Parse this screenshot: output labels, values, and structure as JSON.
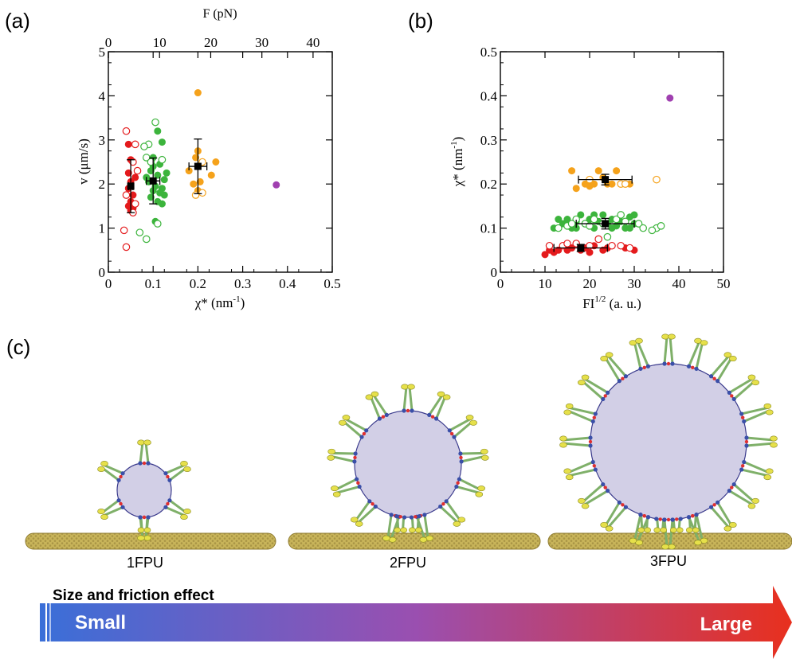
{
  "panel_labels": {
    "a": "(a)",
    "b": "(b)",
    "c": "(c)"
  },
  "colors": {
    "red": "#e41a1c",
    "green": "#3cb43c",
    "orange": "#f5a21b",
    "purple": "#a040b0",
    "black": "#000000",
    "vesicle_fill": "#d2cfe6",
    "vesicle_edge": "#3a3a8c",
    "microtubule": "#c8b45a",
    "motor_stalk": "#7fb069",
    "motor_head": "#e6e04a",
    "bar_start": "#3a6fd8",
    "bar_mid": "#9a4fb0",
    "bar_end": "#e8301e"
  },
  "chart_data": [
    {
      "type": "scatter",
      "panel": "(a)",
      "xlabel": "χ* (nm",
      "xlabel_sup": "-1",
      "xlabel_end": ")",
      "ylabel": "v (μm/s)",
      "top_xlabel": "F (pN)",
      "xlim": [
        0,
        0.5
      ],
      "ylim": [
        0,
        5
      ],
      "top_xlim": [
        0,
        43.75
      ],
      "xticks": [
        "0",
        "0.1",
        "0.2",
        "0.3",
        "0.4",
        "0.5"
      ],
      "yticks": [
        "0",
        "1",
        "2",
        "3",
        "4",
        "5"
      ],
      "top_xticks": [
        "0",
        "10",
        "20",
        "30",
        "40"
      ],
      "series": [
        {
          "color_key": "red",
          "filled": true,
          "points": [
            [
              0.045,
              2.9
            ],
            [
              0.05,
              2.55
            ],
            [
              0.045,
              2.25
            ],
            [
              0.05,
              2.05
            ],
            [
              0.045,
              1.9
            ],
            [
              0.055,
              1.75
            ],
            [
              0.05,
              1.6
            ],
            [
              0.045,
              1.5
            ],
            [
              0.055,
              1.45
            ],
            [
              0.05,
              1.4
            ],
            [
              0.06,
              2.15
            ]
          ]
        },
        {
          "color_key": "red",
          "filled": false,
          "points": [
            [
              0.04,
              3.2
            ],
            [
              0.06,
              2.9
            ],
            [
              0.055,
              2.5
            ],
            [
              0.065,
              2.3
            ],
            [
              0.04,
              1.75
            ],
            [
              0.06,
              1.55
            ],
            [
              0.035,
              0.95
            ],
            [
              0.04,
              0.57
            ],
            [
              0.055,
              1.35
            ]
          ]
        },
        {
          "color_key": "green",
          "filled": true,
          "points": [
            [
              0.11,
              3.2
            ],
            [
              0.12,
              2.95
            ],
            [
              0.1,
              2.6
            ],
            [
              0.115,
              2.45
            ],
            [
              0.095,
              2.3
            ],
            [
              0.11,
              2.2
            ],
            [
              0.125,
              2.1
            ],
            [
              0.09,
              2.05
            ],
            [
              0.105,
              1.95
            ],
            [
              0.12,
              1.9
            ],
            [
              0.1,
              1.85
            ],
            [
              0.115,
              1.8
            ],
            [
              0.125,
              1.75
            ],
            [
              0.095,
              1.7
            ],
            [
              0.11,
              1.6
            ],
            [
              0.12,
              1.55
            ],
            [
              0.1,
              2.4
            ],
            [
              0.13,
              2.25
            ],
            [
              0.085,
              2.15
            ],
            [
              0.105,
              1.15
            ]
          ]
        },
        {
          "color_key": "green",
          "filled": false,
          "points": [
            [
              0.105,
              3.4
            ],
            [
              0.09,
              2.9
            ],
            [
              0.08,
              2.85
            ],
            [
              0.085,
              2.6
            ],
            [
              0.095,
              2.5
            ],
            [
              0.07,
              0.9
            ],
            [
              0.085,
              0.75
            ],
            [
              0.11,
              1.1
            ],
            [
              0.12,
              2.55
            ]
          ]
        },
        {
          "color_key": "orange",
          "filled": true,
          "points": [
            [
              0.2,
              4.07
            ],
            [
              0.2,
              2.75
            ],
            [
              0.195,
              2.6
            ],
            [
              0.18,
              2.3
            ],
            [
              0.24,
              2.5
            ],
            [
              0.23,
              2.2
            ],
            [
              0.205,
              2.05
            ],
            [
              0.19,
              2.0
            ],
            [
              0.2,
              1.85
            ]
          ]
        },
        {
          "color_key": "orange",
          "filled": false,
          "points": [
            [
              0.21,
              2.5
            ],
            [
              0.195,
              1.75
            ],
            [
              0.21,
              1.8
            ]
          ]
        },
        {
          "color_key": "purple",
          "filled": true,
          "points": [
            [
              0.375,
              1.98
            ]
          ]
        }
      ],
      "means": [
        {
          "x": 0.05,
          "y": 1.95,
          "xerr": 0.005,
          "yerr_low": 0.6,
          "yerr_high": 0.6
        },
        {
          "x": 0.1,
          "y": 2.07,
          "xerr": 0.015,
          "yerr_low": 0.52,
          "yerr_high": 0.52
        },
        {
          "x": 0.2,
          "y": 2.4,
          "xerr": 0.02,
          "yerr_low": 0.62,
          "yerr_high": 0.62
        }
      ]
    },
    {
      "type": "scatter",
      "panel": "(b)",
      "xlabel": "FI",
      "xlabel_sup": "1/2",
      "xlabel_end": " (a. u.)",
      "ylabel": "χ* (nm",
      "ylabel_sup": "-1",
      "ylabel_end": ")",
      "xlim": [
        0,
        50
      ],
      "ylim": [
        0,
        0.5
      ],
      "xticks": [
        "0",
        "10",
        "20",
        "30",
        "40",
        "50"
      ],
      "yticks": [
        "0",
        "0.1",
        "0.2",
        "0.3",
        "0.4",
        "0.5"
      ],
      "series": [
        {
          "color_key": "red",
          "filled": true,
          "points": [
            [
              10,
              0.04
            ],
            [
              12,
              0.045
            ],
            [
              13,
              0.05
            ],
            [
              15,
              0.05
            ],
            [
              16,
              0.055
            ],
            [
              18,
              0.05
            ],
            [
              19,
              0.055
            ],
            [
              21,
              0.06
            ],
            [
              23,
              0.05
            ],
            [
              24,
              0.055
            ],
            [
              28,
              0.055
            ],
            [
              30,
              0.05
            ],
            [
              11,
              0.05
            ],
            [
              20,
              0.045
            ]
          ]
        },
        {
          "color_key": "red",
          "filled": false,
          "points": [
            [
              11,
              0.06
            ],
            [
              14,
              0.06
            ],
            [
              17,
              0.065
            ],
            [
              20,
              0.06
            ],
            [
              22,
              0.075
            ],
            [
              25,
              0.06
            ],
            [
              27,
              0.06
            ],
            [
              29,
              0.055
            ],
            [
              15,
              0.065
            ]
          ]
        },
        {
          "color_key": "green",
          "filled": true,
          "points": [
            [
              12,
              0.1
            ],
            [
              14,
              0.11
            ],
            [
              15,
              0.12
            ],
            [
              16,
              0.1
            ],
            [
              17,
              0.115
            ],
            [
              18,
              0.13
            ],
            [
              19,
              0.11
            ],
            [
              20,
              0.12
            ],
            [
              21,
              0.1
            ],
            [
              22,
              0.115
            ],
            [
              23,
              0.13
            ],
            [
              24,
              0.11
            ],
            [
              25,
              0.12
            ],
            [
              26,
              0.105
            ],
            [
              27,
              0.115
            ],
            [
              28,
              0.1
            ],
            [
              29,
              0.125
            ],
            [
              30,
              0.11
            ],
            [
              13,
              0.12
            ],
            [
              17,
              0.1
            ],
            [
              21,
              0.13
            ],
            [
              25,
              0.1
            ],
            [
              29,
              0.1
            ],
            [
              30,
              0.13
            ]
          ]
        },
        {
          "color_key": "green",
          "filled": false,
          "points": [
            [
              13,
              0.1
            ],
            [
              15,
              0.105
            ],
            [
              17,
              0.12
            ],
            [
              19,
              0.11
            ],
            [
              21,
              0.12
            ],
            [
              23,
              0.11
            ],
            [
              26,
              0.12
            ],
            [
              28,
              0.115
            ],
            [
              31,
              0.11
            ],
            [
              32,
              0.1
            ],
            [
              35,
              0.1
            ],
            [
              36,
              0.105
            ],
            [
              34,
              0.095
            ],
            [
              16,
              0.11
            ],
            [
              24,
              0.08
            ],
            [
              27,
              0.13
            ],
            [
              20,
              0.105
            ]
          ]
        },
        {
          "color_key": "orange",
          "filled": true,
          "points": [
            [
              16,
              0.23
            ],
            [
              17,
              0.19
            ],
            [
              19,
              0.2
            ],
            [
              20,
              0.195
            ],
            [
              22,
              0.23
            ],
            [
              23,
              0.215
            ],
            [
              24,
              0.2
            ],
            [
              25,
              0.2
            ],
            [
              26,
              0.23
            ],
            [
              29,
              0.2
            ],
            [
              21,
              0.2
            ]
          ]
        },
        {
          "color_key": "orange",
          "filled": false,
          "points": [
            [
              27,
              0.2
            ],
            [
              28,
              0.2
            ],
            [
              35,
              0.21
            ],
            [
              20,
              0.21
            ]
          ]
        },
        {
          "color_key": "purple",
          "filled": true,
          "points": [
            [
              38,
              0.395
            ]
          ]
        }
      ],
      "means": [
        {
          "x": 18,
          "y": 0.055,
          "xerr": 6,
          "yerr_low": 0.008,
          "yerr_high": 0.008
        },
        {
          "x": 23.5,
          "y": 0.11,
          "xerr": 6.5,
          "yerr_low": 0.012,
          "yerr_high": 0.012
        },
        {
          "x": 23.5,
          "y": 0.21,
          "xerr": 6,
          "yerr_low": 0.012,
          "yerr_high": 0.012
        }
      ]
    }
  ],
  "schematic": {
    "units": [
      {
        "label": "1FPU",
        "arms": 6
      },
      {
        "label": "2FPU",
        "arms": 13
      },
      {
        "label": "3FPU",
        "arms": 20
      }
    ],
    "bar_title": "Size and friction effect",
    "bar_left": "Small",
    "bar_right": "Large"
  }
}
